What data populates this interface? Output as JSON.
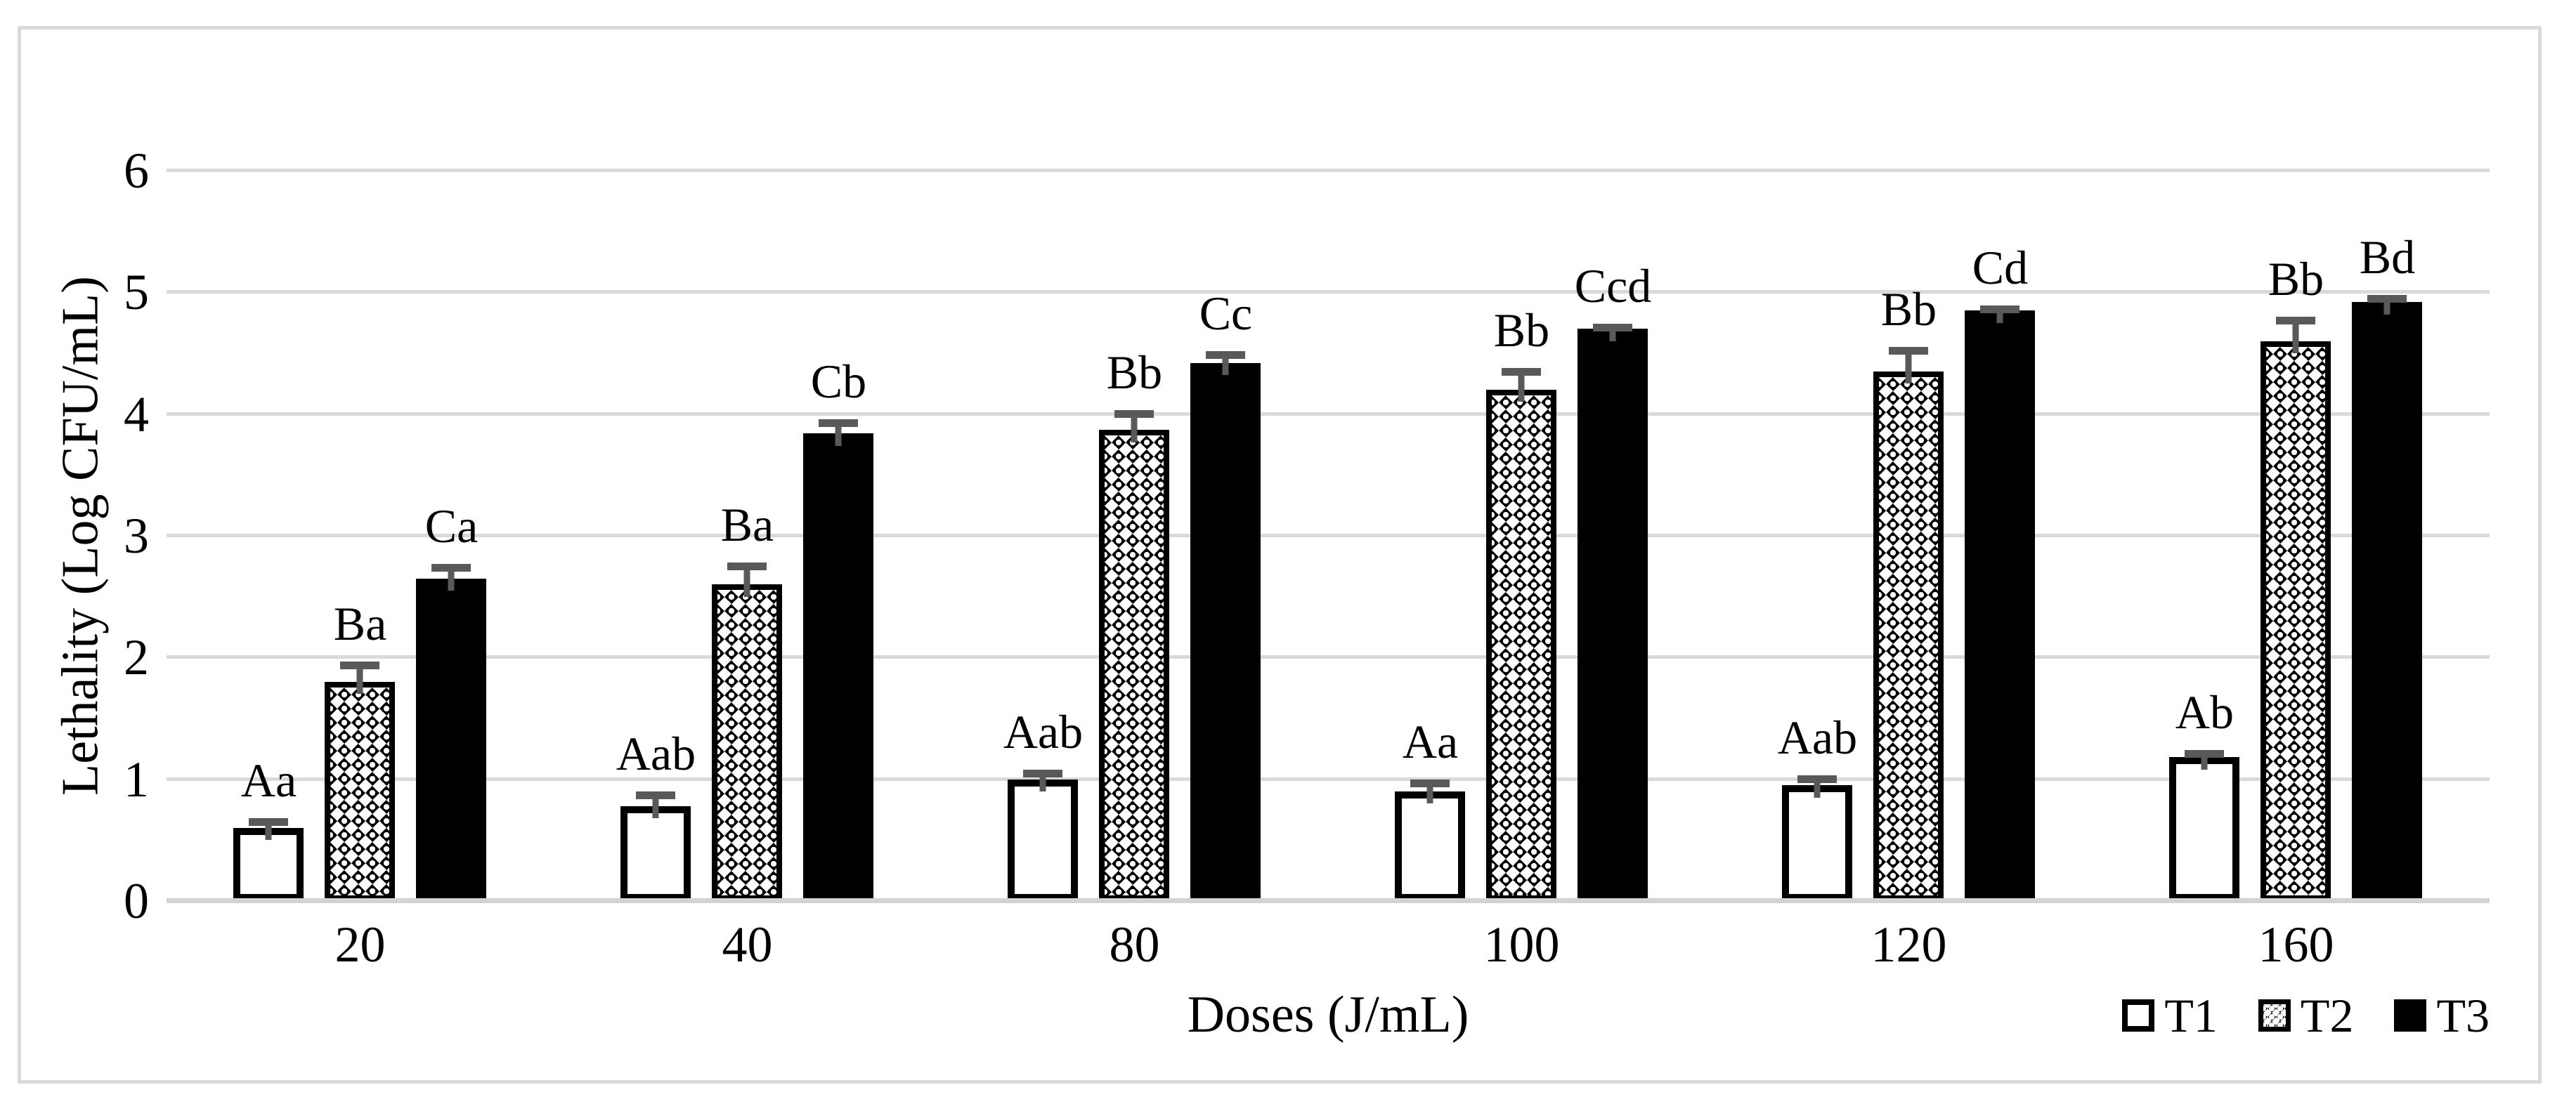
{
  "figure": {
    "background": "#ffffff",
    "border_color": "#d9d9d9"
  },
  "chart_data": {
    "type": "bar",
    "title": "",
    "xlabel": "Doses (J/mL)",
    "ylabel": "Lethality (Log CFU/mL)",
    "ylim": [
      0,
      6
    ],
    "ytick_labels": [
      "0",
      "1",
      "2",
      "3",
      "4",
      "5",
      "6"
    ],
    "grid": true,
    "legend_position": "bottom-right",
    "categories": [
      "20",
      "40",
      "80",
      "100",
      "120",
      "160"
    ],
    "series": [
      {
        "name": "T1",
        "fill": "white",
        "values": [
          0.6,
          0.78,
          1.0,
          0.9,
          0.95,
          1.18
        ],
        "errors": [
          0.08,
          0.12,
          0.08,
          0.1,
          0.08,
          0.06
        ],
        "labels": [
          "Aa",
          "Aab",
          "Aab",
          "Aa",
          "Aab",
          "Ab"
        ]
      },
      {
        "name": "T2",
        "fill": "pattern",
        "values": [
          1.8,
          2.6,
          3.87,
          4.2,
          4.35,
          4.6
        ],
        "errors": [
          0.17,
          0.18,
          0.16,
          0.18,
          0.2,
          0.2
        ],
        "labels": [
          "Ba",
          "Ba",
          "Bb",
          "Bb",
          "Bb",
          "Bb"
        ]
      },
      {
        "name": "T3",
        "fill": "black",
        "values": [
          2.65,
          3.84,
          4.42,
          4.7,
          4.85,
          4.92
        ],
        "errors": [
          0.12,
          0.12,
          0.1,
          0.04,
          0.04,
          0.06
        ],
        "labels": [
          "Ca",
          "Cb",
          "Cc",
          "Ccd",
          "Cd",
          "Bd"
        ]
      }
    ],
    "colors": {
      "grid": "#d9d9d9",
      "axis_line": "#d2d2d2",
      "error_bar": "#595959",
      "bar_black": "#000000",
      "bar_white": "#ffffff",
      "text": "#000000"
    }
  }
}
